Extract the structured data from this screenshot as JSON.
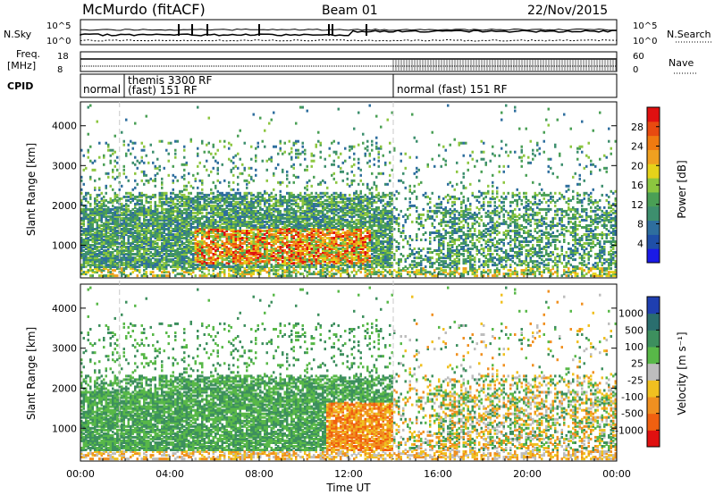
{
  "header": {
    "station": "McMurdo (fitACF)",
    "beam": "Beam 01",
    "date": "22/Nov/2015"
  },
  "panel_labels": {
    "nsky": "N.Sky",
    "nsky_top": "10^5",
    "nsky_bottom": "10^0",
    "nsearch": "N.Search",
    "nsearch_top": "10^5",
    "nsearch_bottom": "10^0",
    "freq_1": "Freq.",
    "freq_2": "[MHz]",
    "freq_top": "18",
    "freq_bottom": "8",
    "nave": "Nave",
    "nave_top": "60",
    "nave_bottom": "0",
    "cpid": "CPID",
    "cpid_segments": [
      "normal",
      "themis 3300 RF",
      "(fast) 151 RF",
      "normal (fast) 151 RF"
    ]
  },
  "chart_data": [
    {
      "type": "heatmap",
      "name": "power",
      "ylabel": "Slant Range [km]",
      "ylim": [
        180,
        4600
      ],
      "yticks": [
        "1000",
        "2000",
        "3000",
        "4000"
      ],
      "ytick_values": [
        1000,
        2000,
        3000,
        4000
      ],
      "xlim": [
        0,
        24
      ],
      "colorbar": {
        "label": "Power [dB]",
        "ticks": [
          "4",
          "8",
          "12",
          "16",
          "20",
          "24",
          "28"
        ],
        "tick_values": [
          4,
          8,
          12,
          16,
          20,
          24,
          28
        ],
        "range": [
          0,
          32
        ],
        "colors": [
          "#1a1ae6",
          "#1f4fa8",
          "#2e6e9e",
          "#3d8f6e",
          "#4a9f55",
          "#8cc63f",
          "#e6d21a",
          "#f0a020",
          "#f07a10",
          "#e84a10",
          "#e01010"
        ]
      }
    },
    {
      "type": "heatmap",
      "name": "velocity",
      "ylabel": "Slant Range [km]",
      "ylim": [
        180,
        4600
      ],
      "yticks": [
        "1000",
        "2000",
        "3000",
        "4000"
      ],
      "ytick_values": [
        1000,
        2000,
        3000,
        4000
      ],
      "xlim": [
        0,
        24
      ],
      "xticks": [
        "00:00",
        "04:00",
        "08:00",
        "12:00",
        "16:00",
        "20:00",
        "00:00"
      ],
      "xtick_values": [
        0,
        4,
        8,
        12,
        16,
        20,
        24
      ],
      "xlabel": "Time UT",
      "colorbar": {
        "label": "Velocity [m s⁻¹]",
        "ticks": [
          "1000",
          "500",
          "100",
          "25",
          "-25",
          "-100",
          "-500",
          "-1000"
        ],
        "colors": [
          "#1f3fb0",
          "#2a6e6e",
          "#3d8f5e",
          "#58b848",
          "#bdbdbd",
          "#f0c020",
          "#f09020",
          "#f06010",
          "#e01010"
        ]
      }
    }
  ],
  "cpid_boundaries_ut": [
    1.75,
    14.0
  ]
}
